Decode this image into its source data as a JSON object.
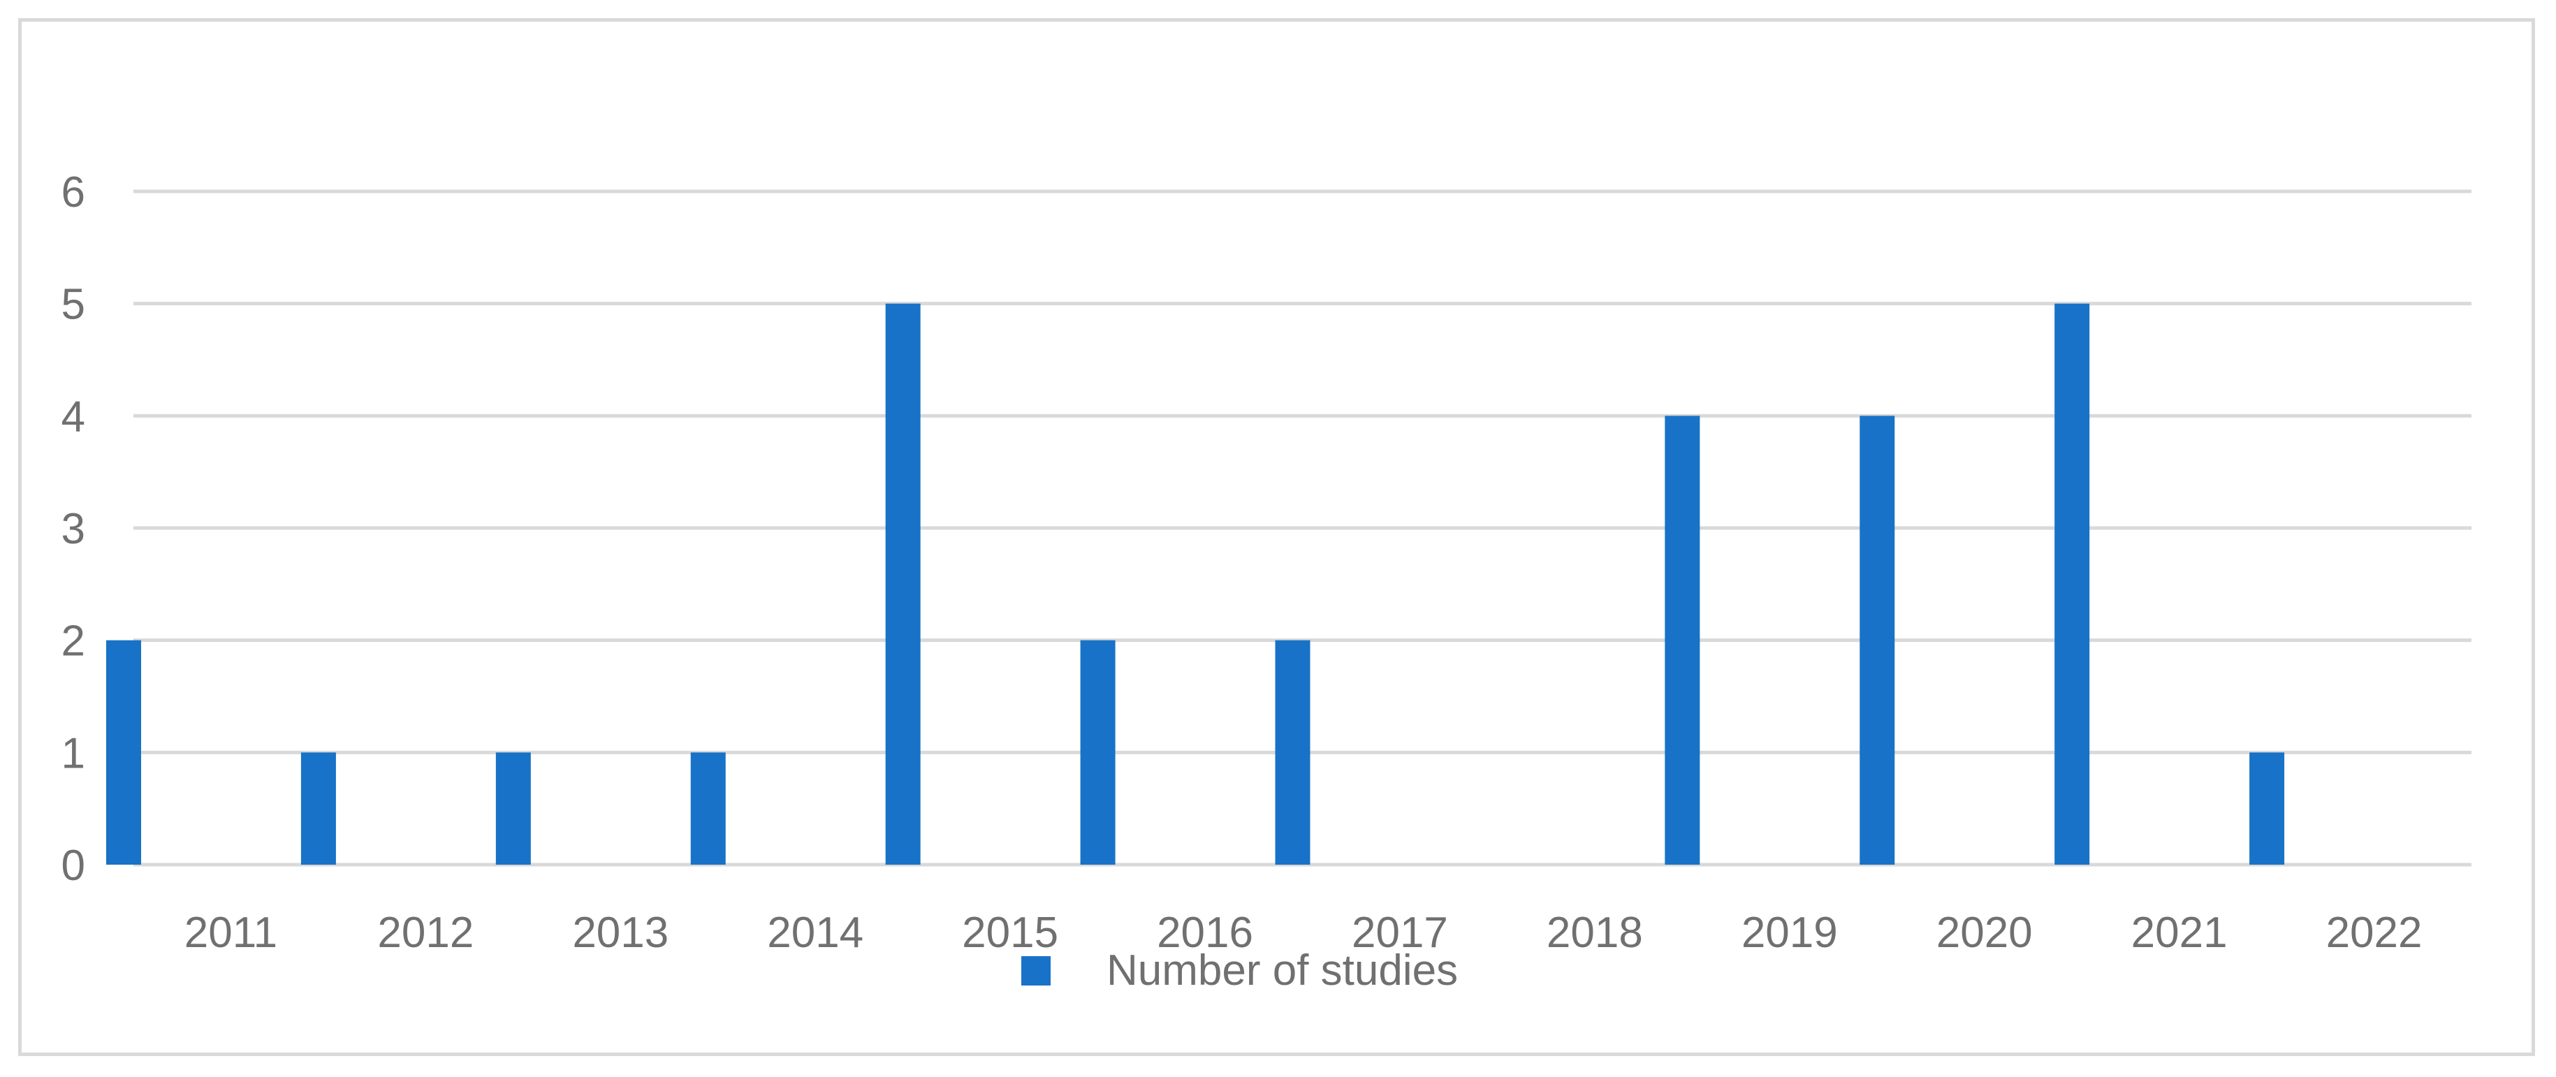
{
  "chart_data": {
    "type": "bar",
    "title": "",
    "xlabel": "",
    "ylabel": "",
    "categories": [
      "2011",
      "2012",
      "2013",
      "2014",
      "2015",
      "2016",
      "2017",
      "2018",
      "2019",
      "2020",
      "2021",
      "2022"
    ],
    "series": [
      {
        "name": "Number of studies",
        "values": [
          2,
          1,
          1,
          1,
          5,
          2,
          2,
          0,
          4,
          4,
          5,
          1
        ],
        "color": "#1872C7"
      }
    ],
    "ylim": [
      0,
      6
    ],
    "yticks": [
      "0",
      "1",
      "2",
      "3",
      "4",
      "5",
      "6"
    ],
    "grid": true,
    "legend": "bottom"
  }
}
